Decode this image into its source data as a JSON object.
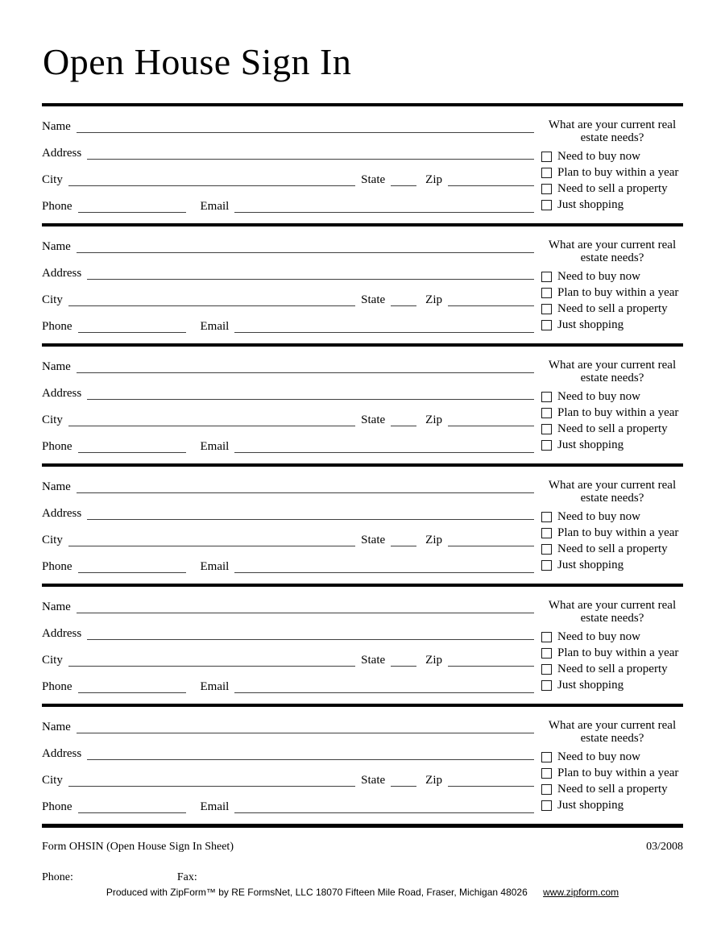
{
  "page": {
    "title": "Open House Sign In"
  },
  "entry_block": {
    "count": 6,
    "labels": {
      "name": "Name",
      "address": "Address",
      "city": "City",
      "state": "State",
      "zip": "Zip",
      "phone": "Phone",
      "email": "Email"
    },
    "needs": {
      "question_line1": "What are your current real",
      "question_line2": "estate needs?",
      "options": [
        {
          "label": "Need to buy now",
          "checked": false
        },
        {
          "label": "Plan to buy within a year",
          "checked": false
        },
        {
          "label": "Need to sell a property",
          "checked": false
        },
        {
          "label": "Just shopping",
          "checked": false
        }
      ]
    }
  },
  "footer": {
    "form_id": "Form OHSIN (Open House Sign In Sheet)",
    "revision_date": "03/2008",
    "phone_label": "Phone:",
    "fax_label": "Fax:",
    "produced_by": "Produced with ZipForm™ by RE FormsNet, LLC 18070 Fifteen Mile Road, Fraser, Michigan 48026",
    "website": "www.zipform.com"
  }
}
